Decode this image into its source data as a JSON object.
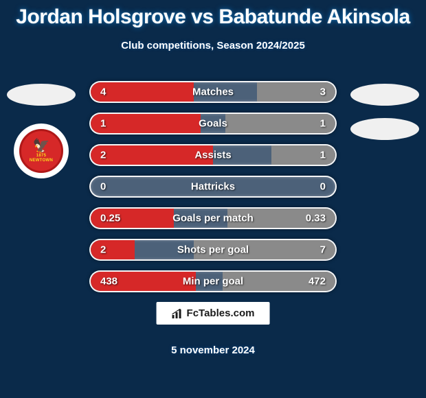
{
  "title": {
    "player1": "Jordan Holsgrove",
    "vs": "vs",
    "player2": "Babatunde Akinsola"
  },
  "subtitle": "Club competitions, Season 2024/2025",
  "badge": {
    "year": "1875",
    "name": "NEWTOWN"
  },
  "colors": {
    "background": "#0a2a4a",
    "bar_left": "#d62828",
    "bar_right": "#8a8a8a",
    "row_border": "#ffffff",
    "row_bg": "rgba(200,200,210,0.35)",
    "text": "#ffffff"
  },
  "stats": [
    {
      "label": "Matches",
      "left_val": "4",
      "right_val": "3",
      "left_pct": 42,
      "right_pct": 32
    },
    {
      "label": "Goals",
      "left_val": "1",
      "right_val": "1",
      "left_pct": 45,
      "right_pct": 45
    },
    {
      "label": "Assists",
      "left_val": "2",
      "right_val": "1",
      "left_pct": 50,
      "right_pct": 26
    },
    {
      "label": "Hattricks",
      "left_val": "0",
      "right_val": "0",
      "left_pct": 0,
      "right_pct": 0
    },
    {
      "label": "Goals per match",
      "left_val": "0.25",
      "right_val": "0.33",
      "left_pct": 34,
      "right_pct": 44
    },
    {
      "label": "Shots per goal",
      "left_val": "2",
      "right_val": "7",
      "left_pct": 18,
      "right_pct": 58
    },
    {
      "label": "Min per goal",
      "left_val": "438",
      "right_val": "472",
      "left_pct": 43,
      "right_pct": 46
    }
  ],
  "footer": {
    "site": "FcTables.com",
    "date": "5 november 2024"
  }
}
